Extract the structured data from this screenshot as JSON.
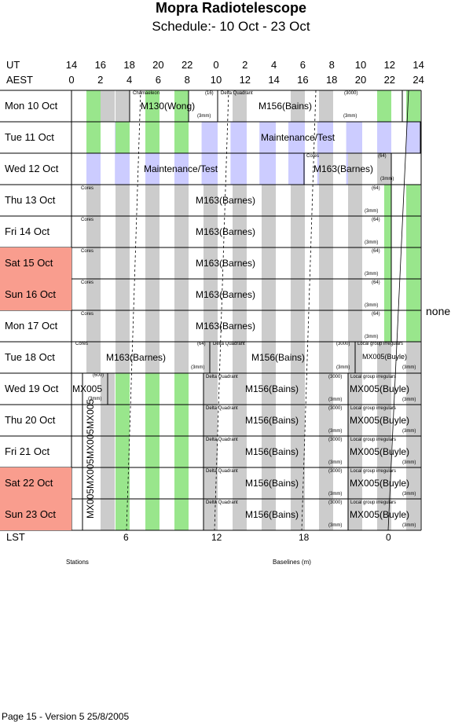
{
  "title": "Mopra Radiotelescope",
  "subtitle": "Schedule:- 10 Oct - 23 Oct",
  "ut_label": "UT",
  "aest_label": "AEST",
  "lst_label": "LST",
  "ut_ticks": [
    "14",
    "16",
    "18",
    "20",
    "22",
    "0",
    "2",
    "4",
    "6",
    "8",
    "10",
    "12",
    "14"
  ],
  "aest_ticks": [
    "0",
    "2",
    "4",
    "6",
    "8",
    "10",
    "12",
    "14",
    "16",
    "18",
    "20",
    "22",
    "24"
  ],
  "lst_ticks": [
    "6",
    "12",
    "18",
    "0"
  ],
  "days": [
    {
      "label": "Mon   10 Oct",
      "weekend": false
    },
    {
      "label": "Tue   11 Oct",
      "weekend": false
    },
    {
      "label": "Wed   12 Oct",
      "weekend": false
    },
    {
      "label": "Thu   13 Oct",
      "weekend": false
    },
    {
      "label": "Fri    14 Oct",
      "weekend": false
    },
    {
      "label": "Sat   15 Oct",
      "weekend": true
    },
    {
      "label": "Sun   16 Oct",
      "weekend": true
    },
    {
      "label": "Mon   17 Oct",
      "weekend": false
    },
    {
      "label": "Tue   18 Oct",
      "weekend": false
    },
    {
      "label": "Wed   19 Oct",
      "weekend": false
    },
    {
      "label": "Thu   20 Oct",
      "weekend": false
    },
    {
      "label": "Fri    21 Oct",
      "weekend": false
    },
    {
      "label": "Sat   22 Oct",
      "weekend": true
    },
    {
      "label": "Sun   23 Oct",
      "weekend": true
    }
  ],
  "programs": {
    "m130": "M130(Wong)",
    "m156": "M156(Bains)",
    "maint": "Maintenance/Test",
    "m163": "M163(Barnes)",
    "mx005": "MX005",
    "mx005b": "MX005(Buyle)",
    "mx005v": "MX005MX005MX005MX005"
  },
  "tags": {
    "chamaeleon": "Chamaeleon",
    "n16": "(16)",
    "delta": "Delta Quadrant",
    "n3000": "(3000)",
    "mm3": "(3mm)",
    "cores": "Cores",
    "n64": "(64)",
    "local": "Local group irregulars",
    "n600": "(600)"
  },
  "none_label": "none",
  "stations_label": "Stations",
  "baselines_label": "Baselines (m)",
  "footer": "Page 15 - Version 5  25/8/2005",
  "colors": {
    "green": "#99e68c",
    "gray": "#cccccc",
    "lavender": "#ccccff",
    "weekend": "#f99d8e"
  }
}
